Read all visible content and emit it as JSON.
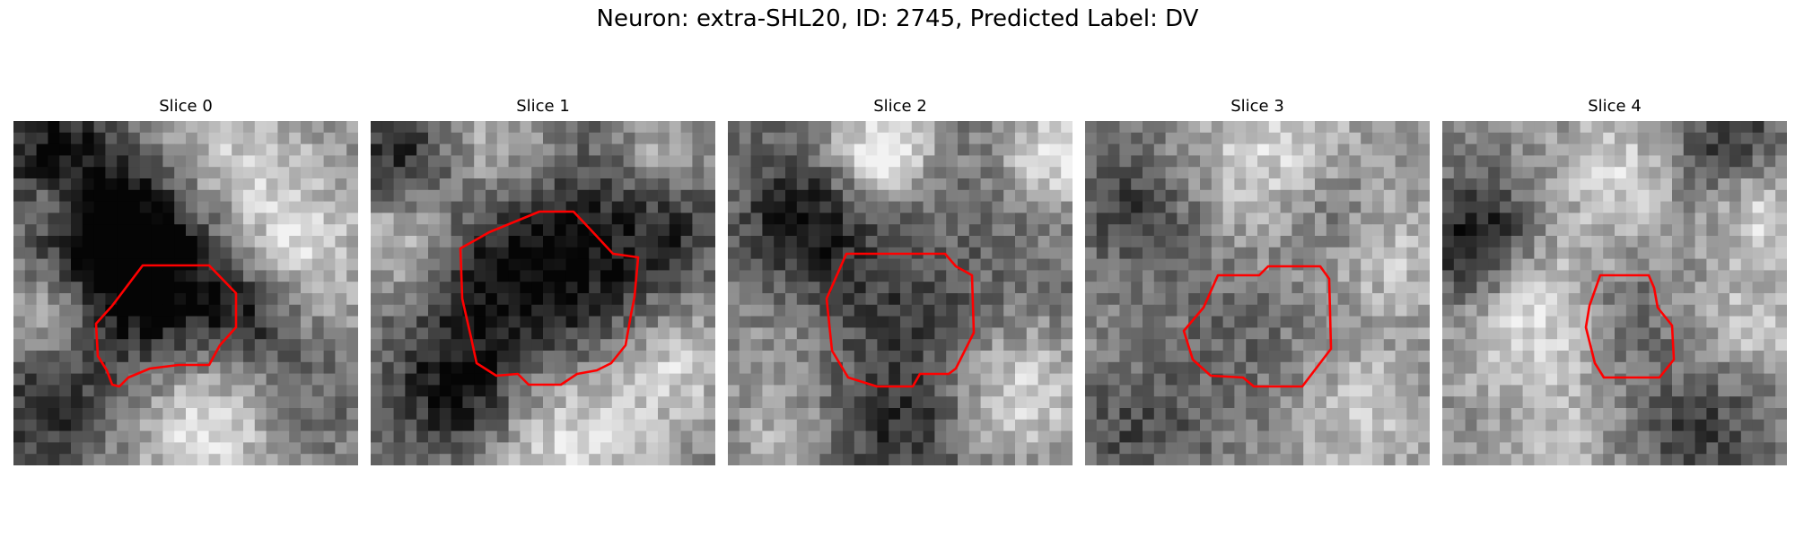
{
  "figure": {
    "title": "Neuron: extra-SHL20, ID: 2745, Predicted Label: DV"
  },
  "colors": {
    "contour": "#ff0000",
    "background": "#ffffff",
    "colormap": "gray"
  },
  "panels": [
    {
      "title": "Slice 0"
    },
    {
      "title": "Slice 1"
    },
    {
      "title": "Slice 2"
    },
    {
      "title": "Slice 3"
    },
    {
      "title": "Slice 4"
    }
  ]
}
